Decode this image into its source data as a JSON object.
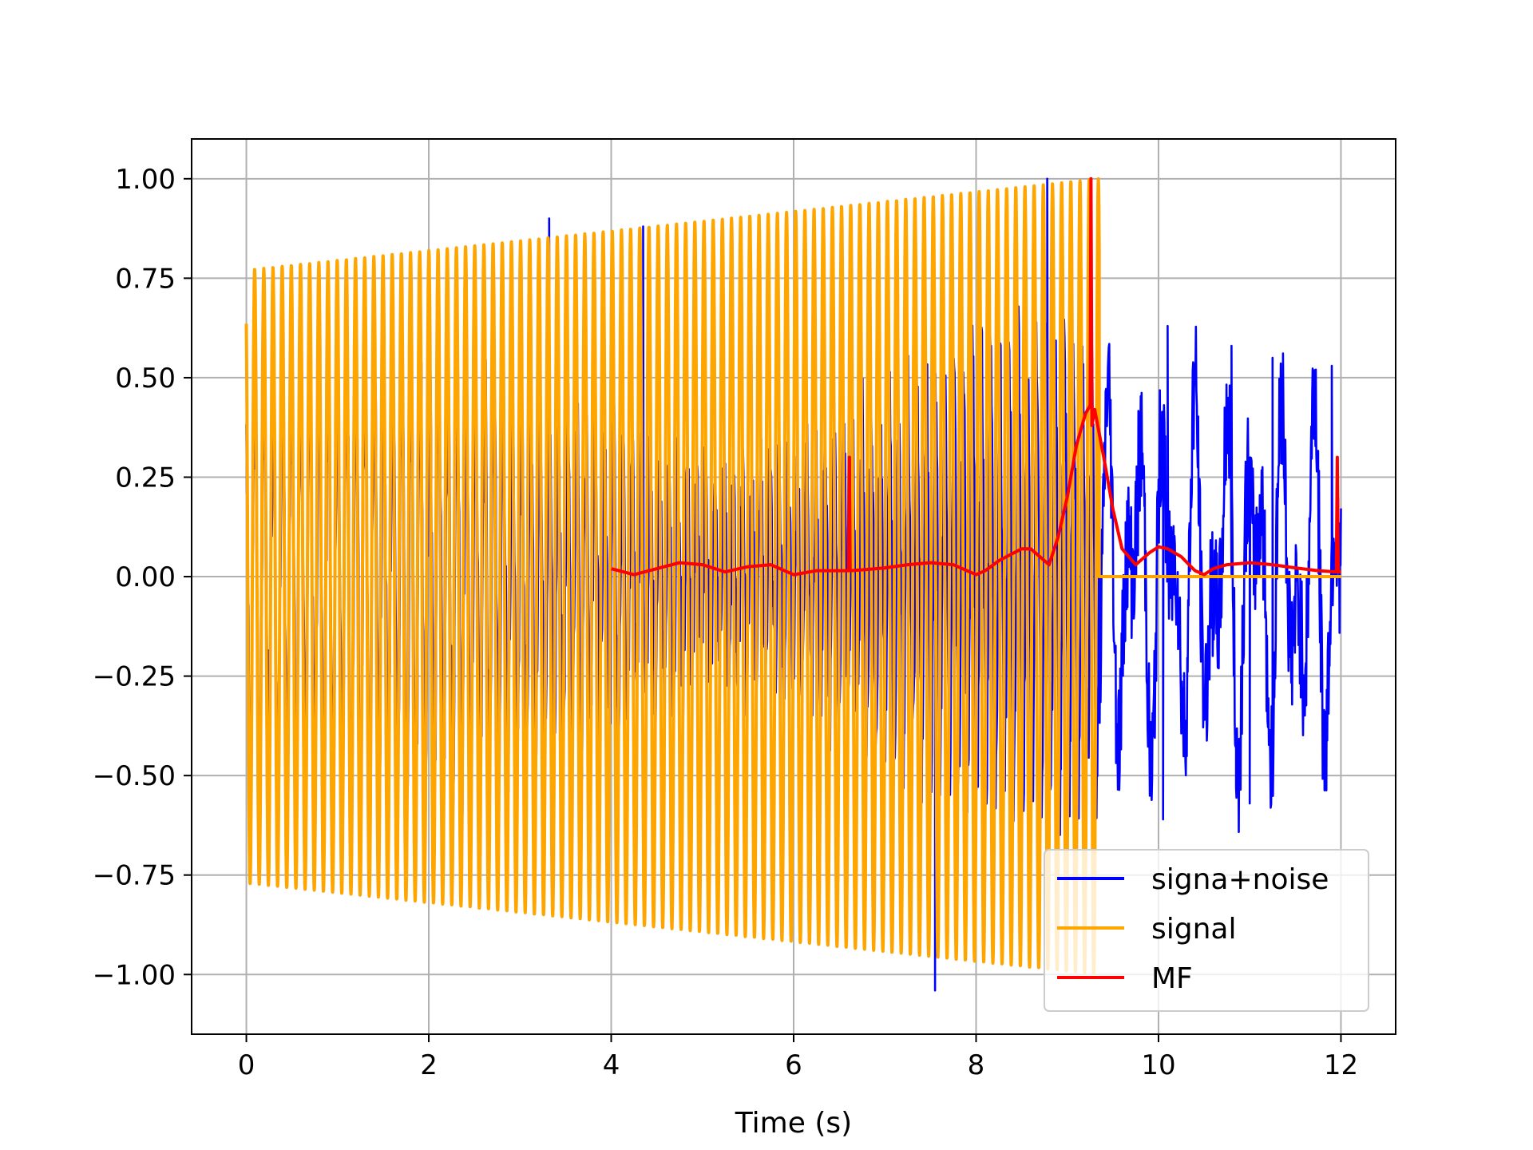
{
  "chart_data": {
    "type": "line",
    "title": "",
    "xlabel": "Time (s)",
    "ylabel": "",
    "xlim": [
      -0.6,
      12.6
    ],
    "ylim": [
      -1.15,
      1.1
    ],
    "xticks": [
      0,
      2,
      4,
      6,
      8,
      10,
      12
    ],
    "xtick_labels": [
      "0",
      "2",
      "4",
      "6",
      "8",
      "10",
      "12"
    ],
    "yticks": [
      1.0,
      0.75,
      0.5,
      0.25,
      0.0,
      -0.25,
      -0.5,
      -0.75,
      -1.0
    ],
    "ytick_labels": [
      "1.00",
      "0.75",
      "0.50",
      "0.25",
      "0.00",
      "−0.25",
      "−0.50",
      "−0.75",
      "−1.00"
    ],
    "grid": true,
    "legend_position": "lower-right",
    "series": [
      {
        "name": "signa+noise",
        "color": "#0000ff",
        "description": "chirp signal plus noise",
        "amplitude_envelope": {
          "x": [
            0,
            9.3,
            9.35,
            12.0
          ],
          "min": [
            -0.5,
            -0.6,
            -0.3,
            -0.4
          ],
          "max": [
            0.4,
            0.6,
            0.3,
            0.35
          ]
        },
        "peaks": [
          {
            "x": 3.32,
            "y": 0.9
          },
          {
            "x": 4.35,
            "y": 0.88
          },
          {
            "x": 7.55,
            "y": -1.04
          },
          {
            "x": 8.78,
            "y": 1.0
          },
          {
            "x": 10.1,
            "y": 0.63
          },
          {
            "x": 10.05,
            "y": -0.61
          },
          {
            "x": 10.8,
            "y": 0.58
          },
          {
            "x": 11.25,
            "y": 0.55
          },
          {
            "x": 11.9,
            "y": 0.53
          },
          {
            "x": 10.85,
            "y": -0.53
          },
          {
            "x": 11.0,
            "y": -0.57
          }
        ]
      },
      {
        "name": "signal",
        "color": "#ffa500",
        "description": "linear chirp, amplitude 0.77 growing to 1.0, ends at 9.35 s",
        "t_start": 0.0,
        "t_end": 9.35,
        "amp_start": 0.77,
        "amp_end": 1.0,
        "freq_start_hz": 10.0,
        "freq_end_hz": 10.0,
        "cycles_total": 93,
        "after_end_value": 0.0,
        "after_end_until": 12.0
      },
      {
        "name": "MF",
        "color": "#ff0000",
        "x": [
          4.0,
          4.25,
          4.5,
          4.75,
          5.0,
          5.25,
          5.5,
          5.75,
          6.0,
          6.25,
          6.5,
          6.6,
          6.61,
          6.62,
          6.8,
          7.0,
          7.25,
          7.5,
          7.75,
          8.0,
          8.1,
          8.25,
          8.5,
          8.6,
          8.75,
          8.8,
          8.9,
          9.0,
          9.1,
          9.2,
          9.25,
          9.26,
          9.27,
          9.3,
          9.4,
          9.5,
          9.6,
          9.75,
          9.9,
          10.0,
          10.1,
          10.25,
          10.4,
          10.5,
          10.6,
          10.75,
          11.0,
          11.25,
          11.5,
          11.75,
          11.95,
          11.96,
          11.97,
          12.0
        ],
        "y": [
          0.02,
          0.005,
          0.02,
          0.035,
          0.03,
          0.012,
          0.025,
          0.03,
          0.005,
          0.015,
          0.015,
          0.015,
          0.3,
          0.015,
          0.018,
          0.022,
          0.03,
          0.035,
          0.03,
          0.005,
          0.015,
          0.04,
          0.07,
          0.07,
          0.04,
          0.03,
          0.1,
          0.2,
          0.33,
          0.41,
          0.43,
          1.0,
          0.38,
          0.42,
          0.3,
          0.17,
          0.07,
          0.03,
          0.06,
          0.075,
          0.07,
          0.05,
          0.015,
          0.005,
          0.02,
          0.03,
          0.035,
          0.03,
          0.022,
          0.015,
          0.012,
          0.3,
          0.012,
          0.012
        ]
      }
    ]
  }
}
